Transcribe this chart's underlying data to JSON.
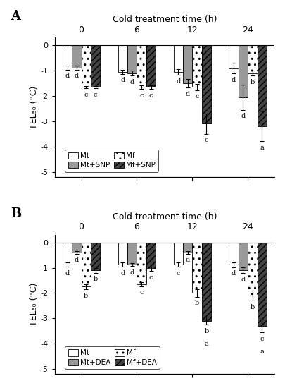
{
  "panel_A": {
    "title": "Cold treatment time (h)",
    "label": "A",
    "ylabel": "TEL₅₀ (°C)",
    "groups": [
      "0",
      "6",
      "12",
      "24"
    ],
    "series_labels": [
      "Mt",
      "Mt+SNP",
      "Mf",
      "Mf+SNP"
    ],
    "values": [
      [
        -0.88,
        -0.88,
        -1.65,
        -1.65
      ],
      [
        -1.05,
        -1.1,
        -1.65,
        -1.65
      ],
      [
        -1.05,
        -1.5,
        -1.65,
        -3.1
      ],
      [
        -0.9,
        -2.05,
        -1.1,
        -3.2
      ]
    ],
    "errors": [
      [
        0.08,
        0.08,
        0.05,
        0.05
      ],
      [
        0.08,
        0.1,
        0.08,
        0.08
      ],
      [
        0.12,
        0.18,
        0.12,
        0.4
      ],
      [
        0.22,
        0.5,
        0.1,
        0.6
      ]
    ],
    "letters": [
      [
        [
          "d",
          "d",
          "c",
          "c"
        ],
        [
          "d",
          "d",
          "c",
          "c"
        ]
      ],
      [
        [
          "d",
          "d",
          "c",
          "c"
        ],
        [
          "d",
          "d",
          "c",
          "c"
        ]
      ],
      [
        [
          "d",
          "d",
          "c",
          "c"
        ],
        [
          "d",
          "d",
          "c",
          "c"
        ]
      ],
      [
        [
          "d",
          "d",
          "b",
          "a"
        ],
        [
          "d",
          "d",
          "b",
          "a"
        ]
      ]
    ],
    "letter_vals": [
      [
        [
          -0.88,
          -0.88,
          -1.65,
          -1.65
        ],
        [
          -0.88,
          -0.88,
          -1.65,
          -1.65
        ]
      ],
      [
        [
          -1.05,
          -1.1,
          -1.65,
          -1.65
        ],
        [
          -1.05,
          -1.1,
          -1.65,
          -1.65
        ]
      ],
      [
        [
          -1.05,
          -1.5,
          -1.65,
          -3.1
        ],
        [
          -1.05,
          -1.5,
          -1.65,
          -3.1
        ]
      ],
      [
        [
          -0.9,
          -2.05,
          -1.1,
          -3.2
        ],
        [
          -0.9,
          -2.05,
          -1.1,
          -3.2
        ]
      ]
    ],
    "ylim": [
      -5.2,
      0.3
    ],
    "yticks": [
      0,
      -1,
      -2,
      -3,
      -4,
      -5
    ]
  },
  "panel_B": {
    "title": "Cold treatment time (h)",
    "label": "B",
    "ylabel": "TEL₅₀ (°C)",
    "groups": [
      "0",
      "6",
      "12",
      "24"
    ],
    "series_labels": [
      "Mt",
      "Mt+DEA",
      "Mf",
      "Mf+DEA"
    ],
    "values": [
      [
        -0.88,
        -0.4,
        -1.75,
        -1.1
      ],
      [
        -0.88,
        -0.88,
        -1.65,
        -1.05
      ],
      [
        -0.88,
        -0.4,
        -2.0,
        -3.1
      ],
      [
        -0.88,
        -1.1,
        -2.1,
        -3.3
      ]
    ],
    "errors": [
      [
        0.08,
        0.05,
        0.1,
        0.1
      ],
      [
        0.08,
        0.05,
        0.08,
        0.08
      ],
      [
        0.08,
        0.05,
        0.15,
        0.15
      ],
      [
        0.1,
        0.12,
        0.2,
        0.25
      ]
    ],
    "ylim": [
      -5.2,
      0.3
    ],
    "yticks": [
      0,
      -1,
      -2,
      -3,
      -4,
      -5
    ]
  },
  "panel_A_annots": {
    "groups_letters": [
      {
        "bars": [
          "d",
          "d",
          "c",
          "c"
        ],
        "errs": [
          0.08,
          0.08,
          0.05,
          0.05
        ],
        "vals": [
          -0.88,
          -0.88,
          -1.65,
          -1.65
        ]
      },
      {
        "bars": [
          "d",
          "d",
          "c",
          "c"
        ],
        "errs": [
          0.08,
          0.1,
          0.08,
          0.08
        ],
        "vals": [
          -1.05,
          -1.1,
          -1.65,
          -1.65
        ]
      },
      {
        "bars": [
          "d",
          "d",
          "c",
          "c"
        ],
        "errs": [
          0.12,
          0.18,
          0.12,
          0.4
        ],
        "vals": [
          -1.05,
          -1.5,
          -1.65,
          -3.1
        ]
      },
      {
        "bars": [
          "d",
          "d",
          "b",
          "a"
        ],
        "errs": [
          0.22,
          0.5,
          0.1,
          0.6
        ],
        "vals": [
          -0.9,
          -2.05,
          -1.1,
          -3.2
        ]
      }
    ]
  },
  "panel_B_annots": {
    "groups_letters": [
      {
        "bars": [
          "d",
          "d",
          "b",
          "b"
        ],
        "errs": [
          0.08,
          0.05,
          0.1,
          0.1
        ],
        "vals": [
          -0.88,
          -0.4,
          -1.75,
          -1.1
        ]
      },
      {
        "bars": [
          "d",
          "d",
          "c",
          "c"
        ],
        "errs": [
          0.08,
          0.05,
          0.08,
          0.08
        ],
        "vals": [
          -0.88,
          -0.88,
          -1.65,
          -1.05
        ]
      },
      {
        "bars": [
          "c",
          "d",
          "b",
          "b"
        ],
        "errs": [
          0.08,
          0.05,
          0.15,
          0.15
        ],
        "vals": [
          -0.88,
          -0.4,
          -2.0,
          -3.1
        ],
        "extra": [
          null,
          null,
          null,
          "a"
        ]
      },
      {
        "bars": [
          "d",
          "d",
          "b",
          "c"
        ],
        "errs": [
          0.1,
          0.12,
          0.2,
          0.25
        ],
        "vals": [
          -0.88,
          -1.1,
          -2.1,
          -3.3
        ],
        "extra": [
          null,
          null,
          null,
          "a"
        ]
      }
    ]
  },
  "bar_colors": [
    "white",
    "#999999",
    "white",
    "#444444"
  ],
  "bar_hatches": [
    null,
    null,
    "..",
    "////"
  ],
  "bar_edgecolors": [
    "black",
    "black",
    "black",
    "black"
  ],
  "bar_width": 0.17,
  "group_centers": [
    0,
    1,
    2,
    3
  ]
}
